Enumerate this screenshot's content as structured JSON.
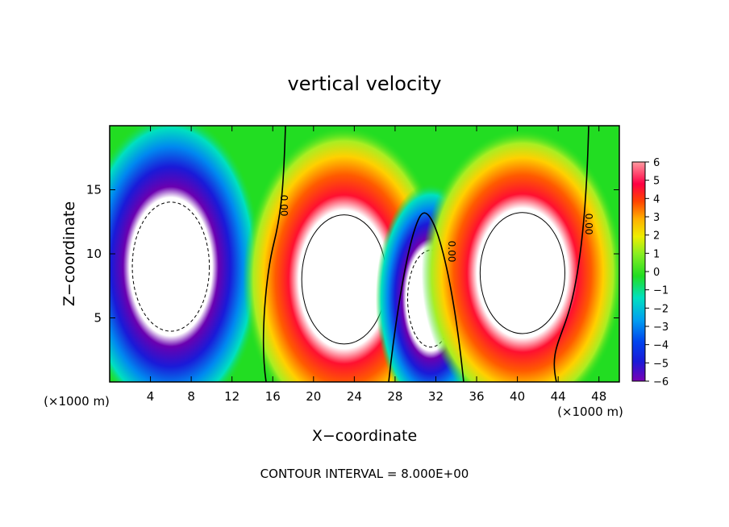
{
  "chart_data": {
    "type": "heatmap",
    "title": "vertical velocity",
    "xlabel": "X−coordinate",
    "ylabel": "Z−coordinate",
    "x_unit_left": "(×1000 m)",
    "x_unit_right": "(×1000 m)",
    "xlim": [
      0,
      50
    ],
    "ylim": [
      0,
      20
    ],
    "x_ticks": [
      4,
      8,
      12,
      16,
      20,
      24,
      28,
      32,
      36,
      40,
      44,
      48
    ],
    "y_ticks": [
      5,
      10,
      15
    ],
    "contour_labels": [
      "0.00",
      "0.00",
      "0.00"
    ],
    "footer": "CONTOUR INTERVAL = 8.000E+00",
    "colorbar": {
      "ticks": [
        "6",
        "5",
        "4",
        "3",
        "2",
        "1",
        "0",
        "−1",
        "−2",
        "−3",
        "−4",
        "−5",
        "−6"
      ],
      "range": [
        -6,
        6
      ]
    },
    "colors": {
      "background": "#22dd22",
      "saturated_high": "#ffffff",
      "saturated_low": "#ffffff"
    },
    "features": [
      {
        "kind": "down",
        "x": 6,
        "z": 9,
        "rx": 5,
        "rz": 8
      },
      {
        "kind": "up",
        "x": 23,
        "z": 8,
        "rx": 5.5,
        "rz": 8
      },
      {
        "kind": "down",
        "x": 31.5,
        "z": 6.5,
        "rx": 3,
        "rz": 6
      },
      {
        "kind": "up",
        "x": 40.5,
        "z": 8.5,
        "rx": 5.5,
        "rz": 7.5
      }
    ]
  }
}
